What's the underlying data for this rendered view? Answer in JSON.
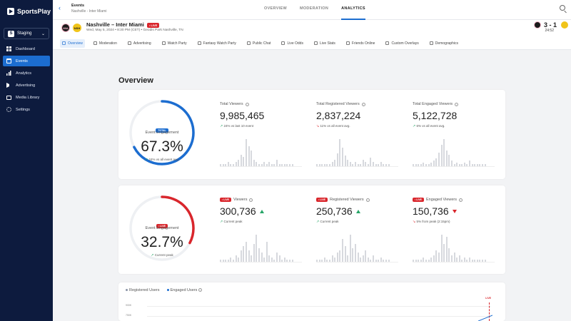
{
  "app": {
    "name": "SportsPlay",
    "org": "Staging",
    "org_initial": "S"
  },
  "sidebar": {
    "items": [
      {
        "label": "Dashboard",
        "icon": "dashboard-icon"
      },
      {
        "label": "Events",
        "icon": "calendar-icon",
        "active": true
      },
      {
        "label": "Analytics",
        "icon": "bar-chart-icon"
      },
      {
        "label": "Advertising",
        "icon": "megaphone-icon"
      },
      {
        "label": "Media Library",
        "icon": "folder-icon"
      },
      {
        "label": "Settings",
        "icon": "gear-icon"
      }
    ]
  },
  "header": {
    "title": "Events",
    "subtitle": "Nashville - Inter Miami",
    "tabs": [
      "OVERVIEW",
      "MODERATION",
      "ANALYTICS"
    ],
    "active_tab": "ANALYTICS"
  },
  "event": {
    "title": "Nashville – Inter Miami",
    "live": "LIVE",
    "meta": "Wed, May 5, 2024 • 8:30 PM (CET) • Geodis Park Nashville, TN",
    "score": "3 - 1",
    "clock": "24:52"
  },
  "subtabs": [
    "Overview",
    "Moderation",
    "Advertising",
    "Watch Party",
    "Fantasy Watch Party",
    "Public Chat",
    "Live Odds",
    "Live Stats",
    "Friends Online",
    "Custom Overlays",
    "Demographics"
  ],
  "overview": {
    "title": "Overview",
    "total": {
      "gauge": {
        "badge": "TOTAL",
        "caption": "Event Engagement",
        "value": "67.3%",
        "fraction": 0.673,
        "sub": "24% vs all event avg."
      },
      "metrics": [
        {
          "title": "Total Viewers",
          "value": "9,985,465",
          "sub": "24% vs last 10 event",
          "trend": "up",
          "bars": [
            1,
            1,
            1,
            2,
            1,
            1,
            2,
            3,
            5,
            4,
            12,
            9,
            7,
            3,
            2,
            1,
            1,
            2,
            1,
            2,
            1,
            1,
            3,
            1,
            1,
            1,
            1,
            1,
            1
          ]
        },
        {
          "title": "Total Registered Viewers",
          "value": "2,837,224",
          "sub": "11% vs all event avg.",
          "trend": "down",
          "bars": [
            1,
            1,
            1,
            1,
            1,
            1,
            2,
            3,
            6,
            13,
            9,
            5,
            3,
            2,
            1,
            2,
            1,
            1,
            3,
            2,
            1,
            4,
            2,
            1,
            1,
            2,
            1,
            1,
            1
          ]
        },
        {
          "title": "Total Engaged Viewers",
          "value": "5,122,728",
          "sub": "6% vs all event avg.",
          "trend": "up",
          "bars": [
            1,
            1,
            1,
            1,
            2,
            1,
            1,
            2,
            3,
            4,
            7,
            11,
            14,
            8,
            6,
            3,
            1,
            2,
            1,
            1,
            2,
            1,
            3,
            1,
            1,
            1,
            1,
            1,
            1
          ]
        }
      ]
    },
    "live": {
      "gauge": {
        "badge": "LIVE",
        "caption": "Event Engagement",
        "value": "32.7%",
        "fraction": 0.327,
        "sub": "Current peak"
      },
      "metrics": [
        {
          "badge": "LIVE",
          "title": "Viewers",
          "value": "300,736",
          "sub": "Current peak",
          "trend": "up",
          "bars": [
            1,
            1,
            1,
            1,
            2,
            1,
            3,
            2,
            5,
            7,
            9,
            5,
            3,
            8,
            12,
            6,
            4,
            2,
            9,
            3,
            2,
            1,
            4,
            3,
            1,
            2,
            1,
            1,
            1
          ]
        },
        {
          "badge": "LIVE",
          "title": "Registered Viewers",
          "value": "250,736",
          "sub": "Current peak",
          "trend": "up",
          "bars": [
            1,
            1,
            1,
            2,
            1,
            1,
            3,
            2,
            4,
            5,
            10,
            7,
            3,
            12,
            6,
            8,
            4,
            2,
            3,
            5,
            2,
            1,
            3,
            1,
            1,
            2,
            1,
            1,
            1
          ]
        },
        {
          "badge": "LIVE",
          "title": "Engaged Viewers",
          "value": "150,736",
          "sub": "5% from peak (2:15pm)",
          "trend": "down",
          "bars": [
            1,
            1,
            1,
            1,
            2,
            1,
            1,
            2,
            3,
            5,
            4,
            12,
            8,
            11,
            6,
            3,
            4,
            2,
            3,
            1,
            2,
            1,
            2,
            1,
            1,
            1,
            1,
            1,
            1
          ]
        }
      ]
    }
  },
  "timeline": {
    "legend": [
      "Registered Users",
      "Engaged Users"
    ],
    "y_labels": [
      "900K",
      "750K"
    ],
    "live_label": "LIVE"
  },
  "colors": {
    "accent": "#1c6dd0",
    "live": "#d9262c",
    "up": "#27a567",
    "sidebar": "#0d1b3e"
  }
}
